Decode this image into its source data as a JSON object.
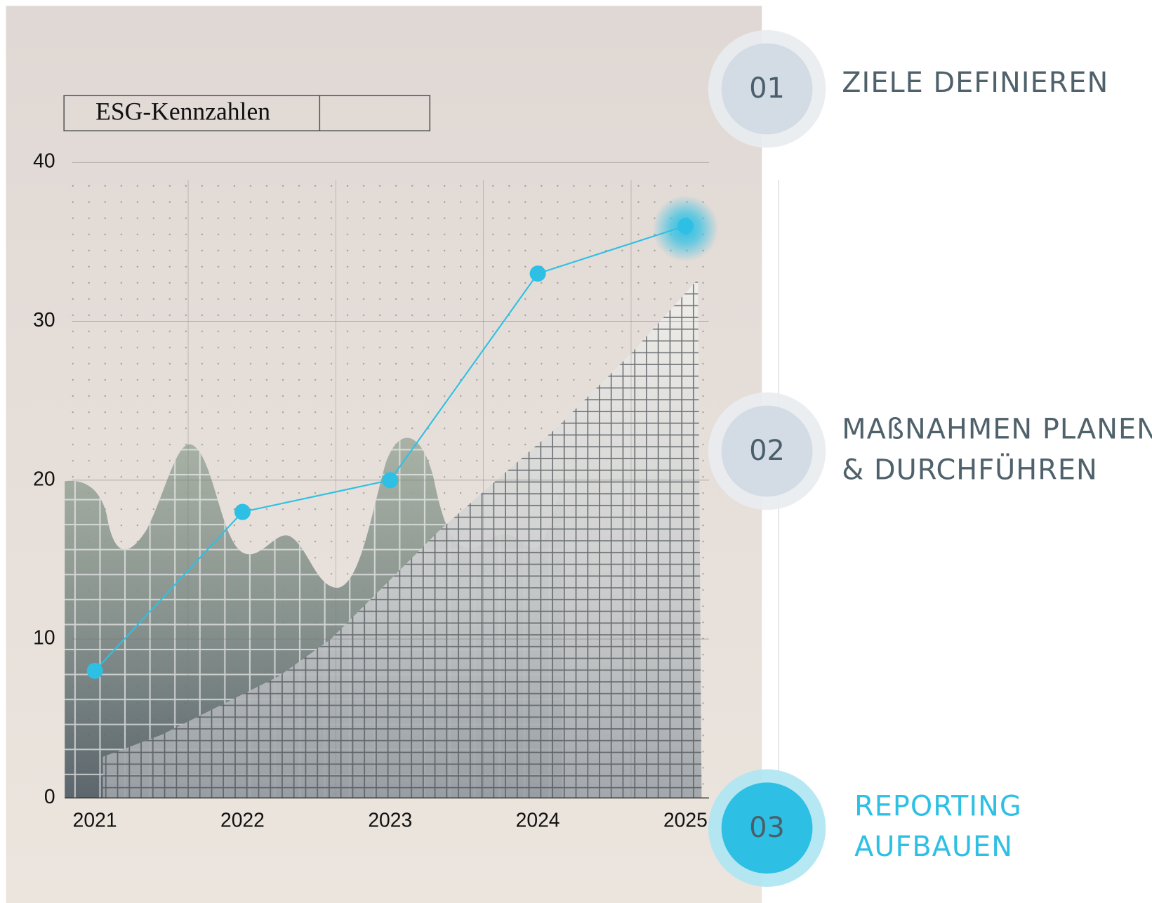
{
  "chart_data": {
    "type": "line",
    "title": "ESG-Kennzahlen",
    "categories": [
      "2021",
      "2022",
      "2023",
      "2024",
      "2025"
    ],
    "series": [
      {
        "name": "ESG-Kennzahlen",
        "color": "#2ec0e4",
        "values": [
          8,
          18,
          20,
          33,
          36
        ]
      }
    ],
    "ylim": [
      0,
      40
    ],
    "yticks": [
      0,
      10,
      20,
      30,
      40
    ],
    "grid": true
  },
  "steps": [
    {
      "number": "01",
      "label": [
        "ZIELE DEFINIEREN"
      ]
    },
    {
      "number": "02",
      "label": [
        "MAßNAHMEN PLANEN",
        "& DURCHFÜHREN"
      ]
    },
    {
      "number": "03",
      "label": [
        "REPORTING",
        "AUFBAUEN"
      ],
      "active": true
    }
  ]
}
